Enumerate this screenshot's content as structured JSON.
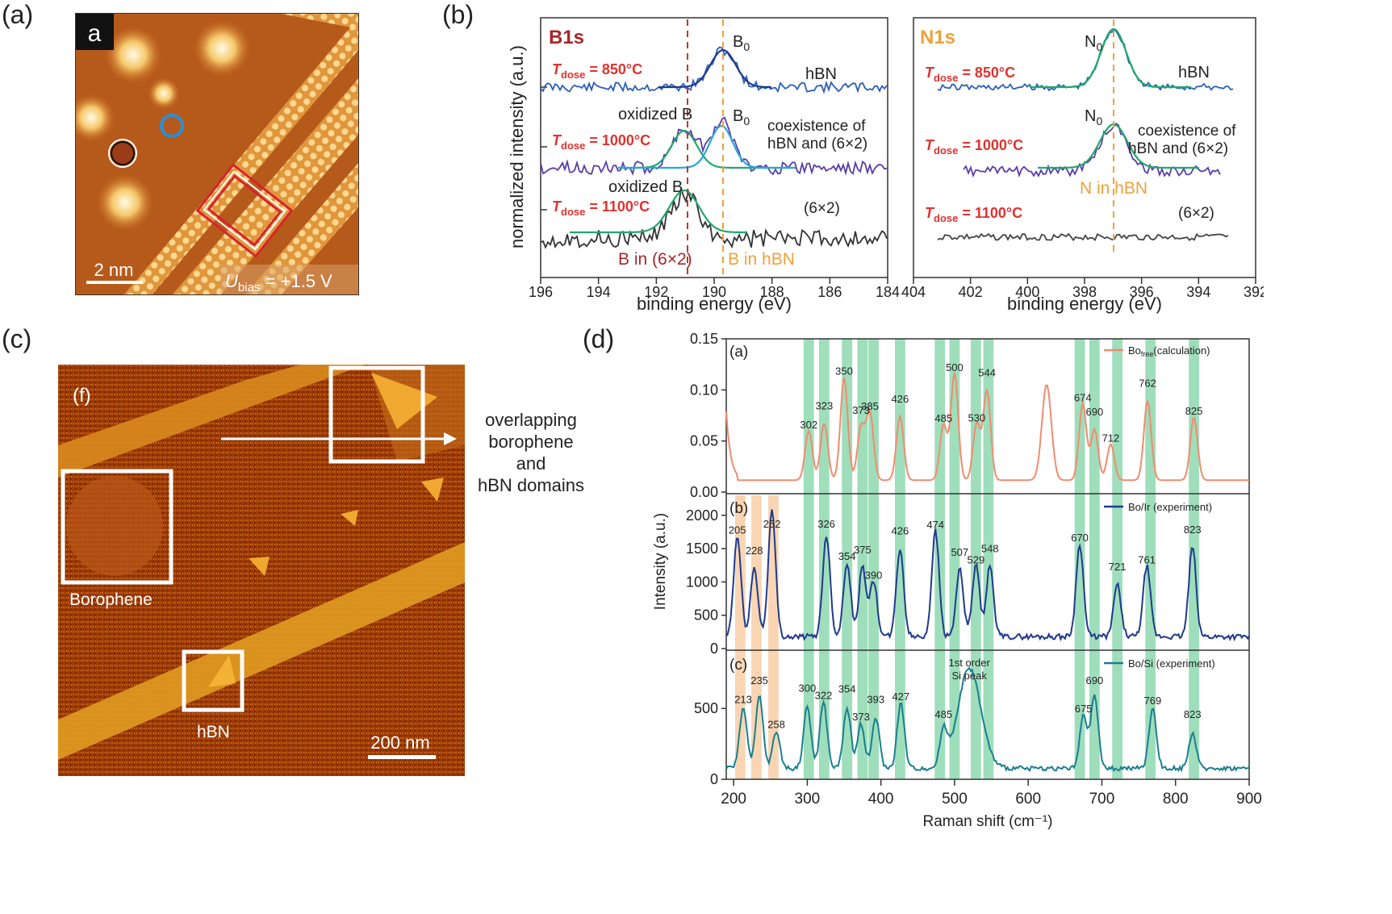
{
  "panel_labels": {
    "a": "(a)",
    "b": "(b)",
    "c": "(c)",
    "d": "(d)"
  },
  "stm_a": {
    "inset_label": "a",
    "scale_bar": "2 nm",
    "bias_symbol": "U",
    "bias_sub": "bias",
    "bias_value": " = +1.5 V"
  },
  "xps": {
    "ylabel": "normalized intensity (a.u.)",
    "xlabel": "binding energy (eV)",
    "left": {
      "title": "B1s",
      "xticks": [
        "196",
        "194",
        "192",
        "190",
        "188",
        "186",
        "184"
      ],
      "peak_B0": "B",
      "peak_B0_sub": "0",
      "oxidized1": "oxidized B",
      "oxidized2": "oxidized B",
      "hbn": "hBN",
      "coexist1": "coexistence of",
      "coexist2": "hBN and (6×2)",
      "six_by_two": "(6×2)",
      "b_in_62": "B in (6×2)",
      "b_in_hbn": "B in hBN",
      "t1": "850°C",
      "t2": "1000°C",
      "t3": "1100°C",
      "t_symbol": "T",
      "t_sub": "dose",
      "t_eq": " = "
    },
    "right": {
      "title": "N1s",
      "xticks": [
        "404",
        "402",
        "400",
        "398",
        "396",
        "394",
        "392"
      ],
      "peak_N0": "N",
      "peak_N0_sub": "0",
      "hbn": "hBN",
      "coexist1": "coexistence of",
      "coexist2": "hBN and (6×2)",
      "six_by_two": "(6×2)",
      "n_in_hbn": "N in hBN"
    }
  },
  "afm_c": {
    "inset_label": "(f)",
    "overlap1": "overlapping",
    "overlap2": "borophene",
    "overlap3": "and",
    "overlap4": "hBN domains",
    "borophene": "Borophene",
    "hbn": "hBN",
    "scale_bar": "200 nm"
  },
  "chart_data": {
    "type": "line",
    "xlabel": "Raman shift (cm⁻¹)",
    "ylabel": "Intensity (a.u.)",
    "xlim": [
      190,
      900
    ],
    "xticks": [
      "200",
      "300",
      "400",
      "500",
      "600",
      "700",
      "800",
      "900"
    ],
    "green_bands": [
      302,
      323,
      354,
      375,
      390,
      426,
      480,
      500,
      529,
      546,
      670,
      690,
      721,
      766,
      825
    ],
    "orange_bands": [
      209,
      231,
      254
    ],
    "panels": [
      {
        "tag": "(a)",
        "legend": "Bo",
        "legend_sub": "free",
        "legend_rest": "(calculation)",
        "color": "#f28b6e",
        "ylim": [
          0,
          0.15
        ],
        "yticks": [
          "0.00",
          "0.05",
          "0.10",
          "0.15"
        ],
        "peaks": [
          {
            "x": 302,
            "label": "302"
          },
          {
            "x": 323,
            "label": "323"
          },
          {
            "x": 350,
            "label": "350"
          },
          {
            "x": 373,
            "label": "373"
          },
          {
            "x": 385,
            "label": "385"
          },
          {
            "x": 426,
            "label": "426"
          },
          {
            "x": 485,
            "label": "485"
          },
          {
            "x": 500,
            "label": "500"
          },
          {
            "x": 530,
            "label": "530"
          },
          {
            "x": 544,
            "label": "544"
          },
          {
            "x": 674,
            "label": "674"
          },
          {
            "x": 690,
            "label": "690"
          },
          {
            "x": 712,
            "label": "712"
          },
          {
            "x": 762,
            "label": "762"
          },
          {
            "x": 825,
            "label": "825"
          }
        ]
      },
      {
        "tag": "(b)",
        "legend": "Bo/Ir (experiment)",
        "color": "#1f3a8c",
        "ylim": [
          0,
          2300
        ],
        "yticks": [
          "0",
          "500",
          "1000",
          "1500",
          "2000"
        ],
        "peaks": [
          {
            "x": 205,
            "label": "205"
          },
          {
            "x": 228,
            "label": "228"
          },
          {
            "x": 252,
            "label": "252"
          },
          {
            "x": 326,
            "label": "326"
          },
          {
            "x": 354,
            "label": "354"
          },
          {
            "x": 375,
            "label": "375"
          },
          {
            "x": 390,
            "label": "390"
          },
          {
            "x": 426,
            "label": "426"
          },
          {
            "x": 474,
            "label": "474"
          },
          {
            "x": 507,
            "label": "507"
          },
          {
            "x": 529,
            "label": "529"
          },
          {
            "x": 548,
            "label": "548"
          },
          {
            "x": 670,
            "label": "670"
          },
          {
            "x": 721,
            "label": "721"
          },
          {
            "x": 761,
            "label": "761"
          },
          {
            "x": 823,
            "label": "823"
          }
        ]
      },
      {
        "tag": "(c)",
        "legend": "Bo/Si (experiment)",
        "color": "#1a7f8f",
        "ylim": [
          0,
          900
        ],
        "yticks": [
          "0",
          "500"
        ],
        "si_label1": "1st order",
        "si_label2": "Si peak",
        "peaks": [
          {
            "x": 213,
            "label": "213"
          },
          {
            "x": 235,
            "label": "235"
          },
          {
            "x": 258,
            "label": "258"
          },
          {
            "x": 300,
            "label": "300"
          },
          {
            "x": 322,
            "label": "322"
          },
          {
            "x": 354,
            "label": "354"
          },
          {
            "x": 373,
            "label": "373"
          },
          {
            "x": 393,
            "label": "393"
          },
          {
            "x": 427,
            "label": "427"
          },
          {
            "x": 485,
            "label": "485"
          },
          {
            "x": 675,
            "label": "675"
          },
          {
            "x": 690,
            "label": "690"
          },
          {
            "x": 769,
            "label": "769"
          },
          {
            "x": 823,
            "label": "823"
          }
        ]
      }
    ]
  }
}
